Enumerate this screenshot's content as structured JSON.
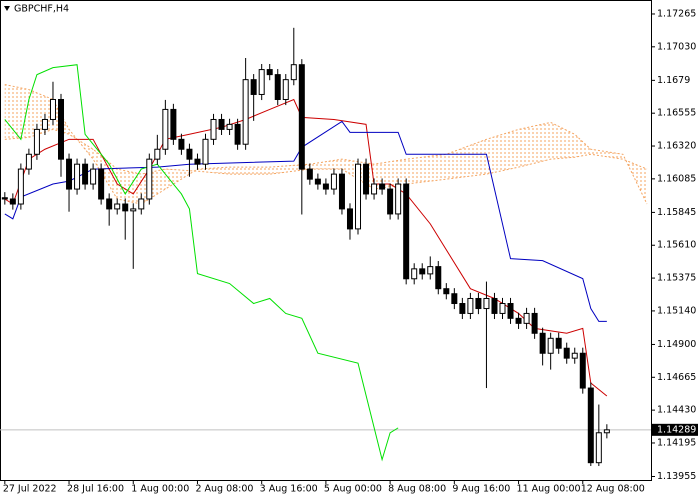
{
  "chart_data": {
    "type": "candlestick",
    "title": "GBPCHF,H4",
    "categories": [
      "27 Jul 2022",
      null,
      null,
      null,
      null,
      null,
      null,
      null,
      "28 Jul 16:00",
      null,
      null,
      null,
      null,
      null,
      null,
      null,
      "1 Aug 00:00",
      null,
      null,
      null,
      null,
      null,
      null,
      null,
      "2 Aug 08:00",
      null,
      null,
      null,
      null,
      null,
      null,
      null,
      "3 Aug 16:00",
      null,
      null,
      null,
      null,
      null,
      null,
      null,
      "5 Aug 00:00",
      null,
      null,
      null,
      null,
      null,
      null,
      null,
      "8 Aug 08:00",
      null,
      null,
      null,
      null,
      null,
      null,
      null,
      "9 Aug 16:00",
      null,
      null,
      null,
      null,
      null,
      null,
      null,
      "11 Aug 00:00",
      null,
      null,
      null,
      null,
      null,
      null,
      null,
      "12 Aug 08:00",
      null,
      null,
      null
    ],
    "open": [
      1.1595,
      1.15941,
      1.15905,
      1.16155,
      1.16261,
      1.16439,
      1.1651,
      1.16653,
      1.16226,
      1.16012,
      1.1619,
      1.16048,
      1.16155,
      1.15941,
      1.1587,
      1.15905,
      1.15856,
      1.1587,
      1.15941,
      1.16226,
      1.16297,
      1.16582,
      1.16368,
      1.16297,
      1.16226,
      1.1619,
      1.16368,
      1.1651,
      1.16439,
      1.16475,
      1.16333,
      1.16795,
      1.16689,
      1.16867,
      1.16831,
      1.16653,
      1.16795,
      1.16902,
      1.16155,
      1.16083,
      1.16048,
      1.16012,
      1.16119,
      1.1587,
      1.15727,
      1.1619,
      1.15977,
      1.16048,
      1.16012,
      1.15834,
      1.16048,
      1.1537,
      1.15441,
      1.15405,
      1.15457,
      1.15299,
      1.15263,
      1.15193,
      1.15122,
      1.15229,
      1.15157,
      1.15229,
      1.15122,
      1.15193,
      1.15087,
      1.15051,
      1.15122,
      1.1498,
      1.14837,
      1.14944,
      1.14873,
      1.14802,
      1.14837,
      1.14588,
      1.14054,
      1.14268
    ],
    "high": [
      1.1599,
      1.15981,
      1.16195,
      1.16301,
      1.16479,
      1.1655,
      1.1678,
      1.16693,
      1.16266,
      1.1623,
      1.1623,
      1.16195,
      1.16195,
      1.15981,
      1.15945,
      1.15945,
      1.1591,
      1.15981,
      1.16266,
      1.164,
      1.1665,
      1.16622,
      1.16408,
      1.16337,
      1.16266,
      1.16408,
      1.1655,
      1.1655,
      1.16515,
      1.16515,
      1.1695,
      1.16835,
      1.16907,
      1.16907,
      1.16871,
      1.16835,
      1.17166,
      1.16942,
      1.16195,
      1.16123,
      1.16088,
      1.16159,
      1.16159,
      1.1591,
      1.1623,
      1.1623,
      1.16088,
      1.16088,
      1.16052,
      1.16088,
      1.16088,
      1.15481,
      1.15481,
      1.1553,
      1.15497,
      1.15339,
      1.15303,
      1.15233,
      1.15269,
      1.15269,
      1.1535,
      1.15269,
      1.15233,
      1.15233,
      1.15127,
      1.15162,
      1.15162,
      1.1502,
      1.14984,
      1.14984,
      1.14913,
      1.14877,
      1.14877,
      1.14628,
      1.1447,
      1.14329
    ],
    "low": [
      1.15901,
      1.15865,
      1.15865,
      1.16115,
      1.16221,
      1.16399,
      1.1647,
      1.161,
      1.1585,
      1.15972,
      1.16008,
      1.16008,
      1.15901,
      1.1575,
      1.1583,
      1.1565,
      1.15441,
      1.1583,
      1.15901,
      1.16186,
      1.16257,
      1.16328,
      1.16257,
      1.161,
      1.1615,
      1.1615,
      1.16328,
      1.16399,
      1.16399,
      1.16293,
      1.16293,
      1.165,
      1.16649,
      1.16791,
      1.16613,
      1.16613,
      1.16755,
      1.1583,
      1.16043,
      1.16008,
      1.15972,
      1.15972,
      1.1583,
      1.1565,
      1.15687,
      1.15937,
      1.15937,
      1.15972,
      1.15794,
      1.15794,
      1.1533,
      1.1533,
      1.15365,
      1.15365,
      1.15259,
      1.15223,
      1.15153,
      1.15082,
      1.15082,
      1.15117,
      1.14588,
      1.15082,
      1.15082,
      1.15047,
      1.15011,
      1.15011,
      1.1494,
      1.1475,
      1.1472,
      1.14833,
      1.14762,
      1.14762,
      1.14548,
      1.1403,
      1.1403,
      1.14228
    ],
    "close": [
      1.15941,
      1.15905,
      1.16155,
      1.16261,
      1.16439,
      1.1651,
      1.16653,
      1.16226,
      1.16012,
      1.1619,
      1.16048,
      1.16155,
      1.15941,
      1.1587,
      1.15905,
      1.15856,
      1.1587,
      1.15941,
      1.16226,
      1.16297,
      1.16582,
      1.16368,
      1.16297,
      1.16226,
      1.1619,
      1.16368,
      1.1651,
      1.16439,
      1.16475,
      1.16333,
      1.16795,
      1.16689,
      1.16867,
      1.16831,
      1.16653,
      1.16795,
      1.16902,
      1.16155,
      1.16083,
      1.16048,
      1.16012,
      1.16119,
      1.1587,
      1.15727,
      1.1619,
      1.15977,
      1.16048,
      1.16012,
      1.15834,
      1.16048,
      1.1537,
      1.15441,
      1.15405,
      1.15457,
      1.15299,
      1.15263,
      1.15193,
      1.15122,
      1.15229,
      1.15157,
      1.15229,
      1.15122,
      1.15193,
      1.15087,
      1.15051,
      1.15122,
      1.1498,
      1.14837,
      1.14944,
      1.14873,
      1.14802,
      1.14837,
      1.14588,
      1.14054,
      1.14268,
      1.14289
    ],
    "up_color": "#ffffff",
    "down_color": "#000000",
    "series": [
      {
        "color": "#cc0000",
        "x": [
          0,
          1,
          3,
          5,
          8,
          11,
          14,
          16,
          18,
          20,
          23,
          27,
          30,
          33,
          36,
          37,
          41,
          45,
          46,
          48,
          50,
          53,
          58,
          61,
          64,
          66,
          70,
          72,
          73,
          75
        ],
        "values": [
          1.15941,
          1.15905,
          1.16226,
          1.16297,
          1.16368,
          1.16368,
          1.16048,
          1.15977,
          1.16155,
          1.16368,
          1.16404,
          1.16454,
          1.1651,
          1.16582,
          1.16653,
          1.16525,
          1.1651,
          1.16475,
          1.16048,
          1.16048,
          1.15977,
          1.15763,
          1.15299,
          1.15229,
          1.15122,
          1.15015,
          1.1498,
          1.15015,
          1.14624,
          1.14531
        ]
      },
      {
        "color": "#0000c0",
        "x": [
          0,
          1,
          2,
          6,
          8,
          11,
          19,
          23,
          36,
          37,
          42,
          43,
          49,
          50,
          60,
          63,
          67,
          72,
          73,
          74,
          75
        ],
        "values": [
          1.15834,
          1.15799,
          1.15955,
          1.16048,
          1.16069,
          1.16155,
          1.16169,
          1.1619,
          1.16212,
          1.16311,
          1.16496,
          1.16418,
          1.16418,
          1.16261,
          1.16261,
          1.15514,
          1.155,
          1.15371,
          1.15157,
          1.15065,
          1.15065
        ]
      },
      {
        "color": "#00e000",
        "x": [
          0,
          2,
          3,
          4,
          6,
          9,
          10,
          13,
          15,
          17,
          19,
          21,
          22,
          23,
          24,
          28,
          31,
          33,
          35,
          37,
          39,
          44,
          47,
          48,
          49
        ],
        "values": [
          1.1651,
          1.16368,
          1.16653,
          1.16831,
          1.16881,
          1.16902,
          1.16404,
          1.1619,
          1.15977,
          1.16155,
          1.1619,
          1.16048,
          1.15977,
          1.1587,
          1.15407,
          1.15336,
          1.15193,
          1.15229,
          1.15122,
          1.15087,
          1.14837,
          1.14766,
          1.14076,
          1.14268,
          1.14303
        ]
      }
    ],
    "cloud": {
      "color": "#f4a460",
      "x": [
        0,
        3,
        6,
        8,
        11,
        14,
        17,
        20,
        24,
        28,
        33,
        38,
        42,
        46,
        50,
        55,
        60,
        64,
        68,
        71,
        73,
        77,
        80
      ],
      "span_a": [
        1.1676,
        1.16724,
        1.16653,
        1.16439,
        1.16226,
        1.15941,
        1.15905,
        1.16012,
        1.16155,
        1.16169,
        1.16169,
        1.1619,
        1.16226,
        1.1619,
        1.16226,
        1.16261,
        1.16368,
        1.16439,
        1.16489,
        1.16404,
        1.16297,
        1.16261,
        1.15905
      ],
      "span_b": [
        1.16368,
        1.16382,
        1.16439,
        1.16404,
        1.16297,
        1.16155,
        1.16119,
        1.16155,
        1.1614,
        1.16119,
        1.16119,
        1.16155,
        1.16155,
        1.16012,
        1.16048,
        1.16083,
        1.16119,
        1.16169,
        1.16226,
        1.1624,
        1.16261,
        1.16226,
        1.16155
      ]
    },
    "xlim": [
      -0.6,
      80.5
    ],
    "ylim": [
      1.1393,
      1.17365
    ],
    "yticks": [
      1.17265,
      {
        "value": 1.1703,
        "label": "1.17030"
      },
      1.1679,
      {
        "value": 1.16555,
        "label": "1.16555"
      },
      {
        "value": 1.1632,
        "label": "1.16320"
      },
      1.16085,
      1.15845,
      {
        "value": 1.1561,
        "label": "1.15610"
      },
      1.15375,
      {
        "value": 1.1514,
        "label": "1.15140"
      },
      {
        "value": 1.149,
        "label": "1.14900"
      },
      1.14665,
      {
        "value": 1.1443,
        "label": "1.14430"
      },
      1.14195,
      1.13955
    ]
  }
}
